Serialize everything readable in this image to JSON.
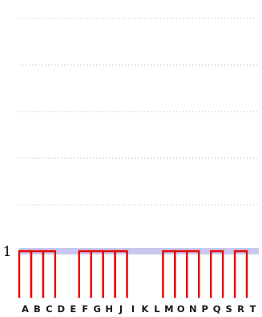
{
  "chart_data": {
    "type": "bar",
    "categories": [
      "A",
      "B",
      "C",
      "D",
      "E",
      "F",
      "G",
      "H",
      "J",
      "I",
      "K",
      "L",
      "M",
      "O",
      "N",
      "P",
      "Q",
      "S",
      "R",
      "T"
    ],
    "values": [
      1,
      1,
      1,
      0,
      0,
      1,
      1,
      1,
      1,
      0,
      0,
      0,
      1,
      1,
      1,
      0,
      1,
      0,
      1,
      0
    ],
    "highlight_band": [
      0.93,
      1.07
    ],
    "ytick_labels": [
      "1"
    ],
    "ylim": [
      0,
      6
    ],
    "grid": true,
    "colors": {
      "bar": "#e60000",
      "band": "#c8c8f0",
      "grid": "#b3b3b3"
    }
  }
}
